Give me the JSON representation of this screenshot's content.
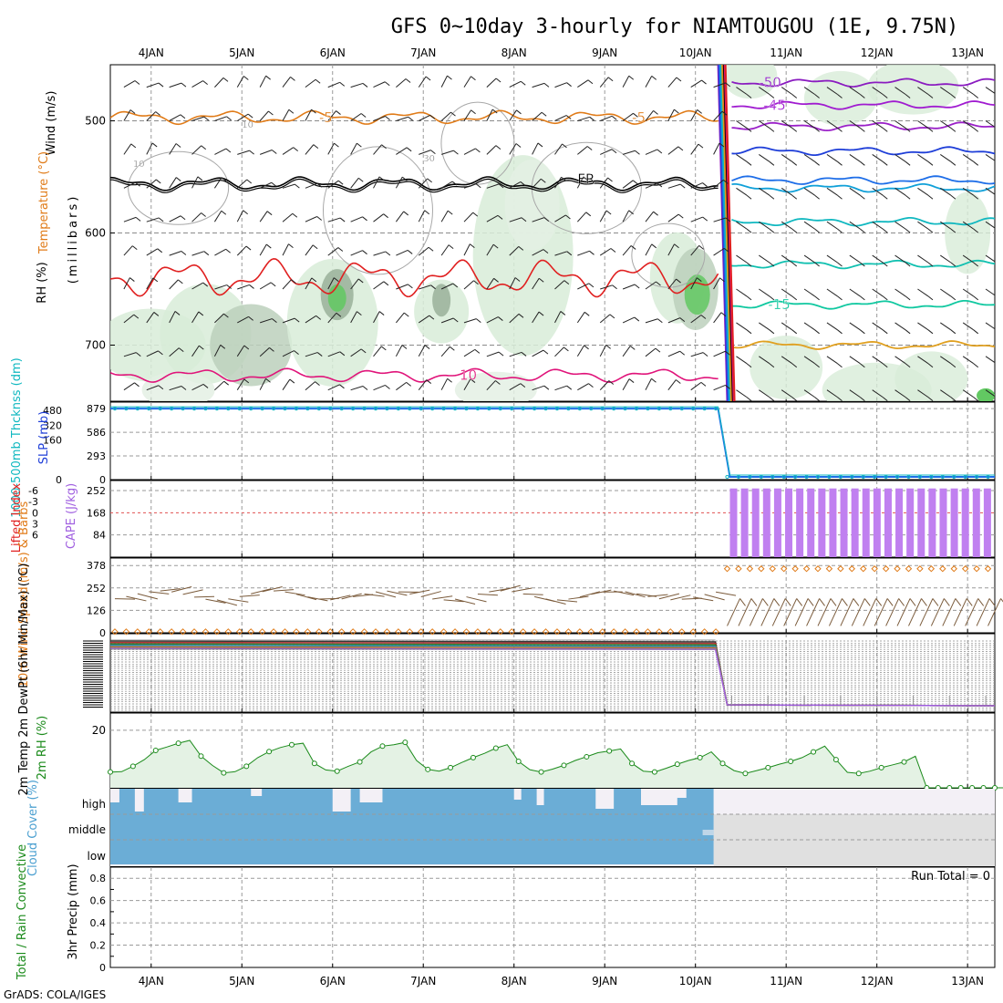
{
  "title": "GFS 0~10day 3-hourly for NIAMTOUGOU (1E, 9.75N)",
  "footer": "GrADS: COLA/IGES",
  "date_labels": [
    "4JAN",
    "5JAN",
    "6JAN",
    "7JAN",
    "8JAN",
    "9JAN",
    "10JAN",
    "11JAN",
    "12JAN",
    "13JAN"
  ],
  "chart_data": [
    {
      "panel": "upper-air",
      "type": "line",
      "ylabel_parts": {
        "rh": "RH (%)",
        "temp": "Temperature (°C)",
        "wind": "Wind (m/s)",
        "units": "(millibars)"
      },
      "yticks": [
        "500",
        "600",
        "700"
      ],
      "ylim": [
        750,
        450
      ],
      "contour_labels": [
        "-50",
        "-45",
        "-5",
        "-5",
        "FR",
        "-15",
        "10",
        "10",
        "10",
        "30"
      ],
      "isotherms": [
        {
          "name": "-5",
          "color": "#e07b18",
          "p_before": 497,
          "p_after": null
        },
        {
          "name": "FR",
          "color": "#000000",
          "p_before": 556,
          "p_after": null
        },
        {
          "name": "10",
          "color": "#e0147a",
          "p_before": 727,
          "p_after": null
        },
        {
          "name": "red",
          "color": "#e02020",
          "p_before": 640,
          "p_after": null
        },
        {
          "name": "-50",
          "color": "#8a1bc0",
          "p_before": null,
          "p_after": 466
        },
        {
          "name": "-45",
          "color": "#a01bd0",
          "p_before": null,
          "p_after": 486
        },
        {
          "name": "purple3",
          "color": "#9a20c8",
          "p_before": null,
          "p_after": 505
        },
        {
          "name": "blue1",
          "color": "#1e3ed8",
          "p_before": null,
          "p_after": 527
        },
        {
          "name": "blue2",
          "color": "#1e6ee8",
          "p_before": null,
          "p_after": 553
        },
        {
          "name": "cyan1",
          "color": "#10a0d8",
          "p_before": null,
          "p_after": 560
        },
        {
          "name": "cyan2",
          "color": "#10b8c0",
          "p_before": null,
          "p_after": 590
        },
        {
          "name": "teal1",
          "color": "#10c0b0",
          "p_before": null,
          "p_after": 628
        },
        {
          "name": "-15",
          "color": "#10c8a0",
          "p_before": null,
          "p_after": 664
        },
        {
          "name": "orange2",
          "color": "#e0a020",
          "p_before": null,
          "p_after": 700
        }
      ]
    },
    {
      "panel": "thickness-slp",
      "type": "line",
      "ylabel_left": "1000-500mb Thcknss (dm)",
      "ylabel_right": "SLP (mb)",
      "yticks_left": [
        "480",
        "320",
        "160",
        "0"
      ],
      "yticks_right": [
        "879",
        "586",
        "293",
        "0"
      ],
      "level_before": 879,
      "level_after": 0
    },
    {
      "panel": "cape-li",
      "type": "bar",
      "ylabel_left": "Lifted Index",
      "ylabel_right": "CAPE (J/kg)",
      "yticks_left": [
        "-6",
        "-3",
        "0",
        "3",
        "6"
      ],
      "yticks_right": [
        "252",
        "168",
        "84"
      ],
      "ylim_right": [
        0,
        290
      ],
      "bar_value": 260,
      "bar_count": 24,
      "bar_start_day": 10.38
    },
    {
      "panel": "wind10m",
      "type": "line",
      "ylabel": "10m Wind Speed (m/s) & Barbs",
      "yticks": [
        "378",
        "252",
        "126",
        "0"
      ],
      "ylim": [
        0,
        420
      ],
      "speed_before": 6,
      "speed_after": 360
    },
    {
      "panel": "temp2m",
      "type": "line",
      "ylabel": "2m Temp 2m DewPt (6hr Min/Max) (°C)"
    },
    {
      "panel": "rh2m",
      "type": "line",
      "ylabel": "2m RH (%)",
      "yticks": [
        "20"
      ],
      "ylim": [
        0,
        26
      ],
      "x_start": 3.55,
      "x_step": 0.125,
      "values": [
        5.5,
        5.6,
        7.5,
        9.8,
        13,
        14.2,
        15.5,
        16.5,
        11,
        7.8,
        5.2,
        5.6,
        7.5,
        10.5,
        12.6,
        14,
        15,
        15.5,
        8.5,
        6.2,
        5.8,
        7.5,
        9,
        12.5,
        14.5,
        15,
        15.8,
        9.5,
        6.4,
        5.8,
        7,
        8.8,
        10.5,
        12,
        13.8,
        15,
        9.2,
        6.3,
        5.5,
        6.5,
        7.8,
        9.5,
        10.8,
        12.2,
        12.8,
        13.5,
        8.5,
        5.8,
        5.5,
        6.8,
        8.2,
        9.5,
        10.5,
        12.5,
        8.5,
        6.0,
        5.0,
        6.0,
        7.0,
        8.2,
        9.2,
        10.5,
        12.5,
        14.5,
        9.8,
        5.4,
        5.0,
        5.8,
        7.0,
        8.0,
        9.0,
        11.0,
        0,
        0,
        0,
        0,
        0,
        0,
        0,
        0,
        0,
        0,
        0,
        0,
        0,
        0,
        0,
        0,
        0,
        0,
        0,
        0,
        0,
        0,
        0,
        0
      ]
    },
    {
      "panel": "cloud",
      "type": "area",
      "ylabel": "Cloud Cover (%)",
      "layers": [
        "high",
        "middle",
        "low"
      ],
      "cloud_end_day": 10.2
    },
    {
      "panel": "precip",
      "type": "bar",
      "ylabel_left": "Total / Rain Convective",
      "ylabel_right": "3hr Precip (mm)",
      "yticks": [
        "0.8",
        "0.6",
        "0.4",
        "0.2",
        "0"
      ],
      "ylim": [
        0,
        0.9
      ],
      "run_total_label": "Run Total = 0"
    }
  ]
}
